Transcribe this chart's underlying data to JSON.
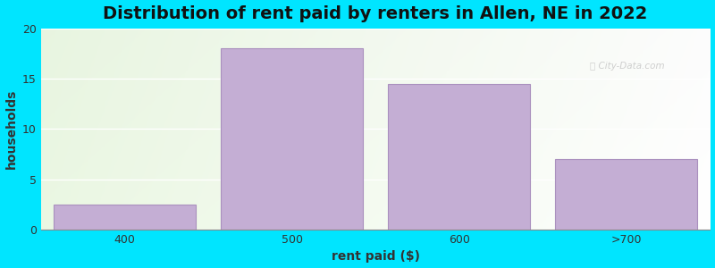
{
  "categories": [
    "400",
    "500",
    "600",
    ">700"
  ],
  "values": [
    2.5,
    18,
    14.5,
    7
  ],
  "bar_color": "#c4aed4",
  "bar_edgecolor": "#aa90be",
  "title": "Distribution of rent paid by renters in Allen, NE in 2022",
  "xlabel": "rent paid ($)",
  "ylabel": "households",
  "ylim": [
    0,
    20
  ],
  "yticks": [
    0,
    5,
    10,
    15,
    20
  ],
  "background_color": "#00e5ff",
  "title_fontsize": 14,
  "axis_label_fontsize": 10,
  "tick_fontsize": 9
}
